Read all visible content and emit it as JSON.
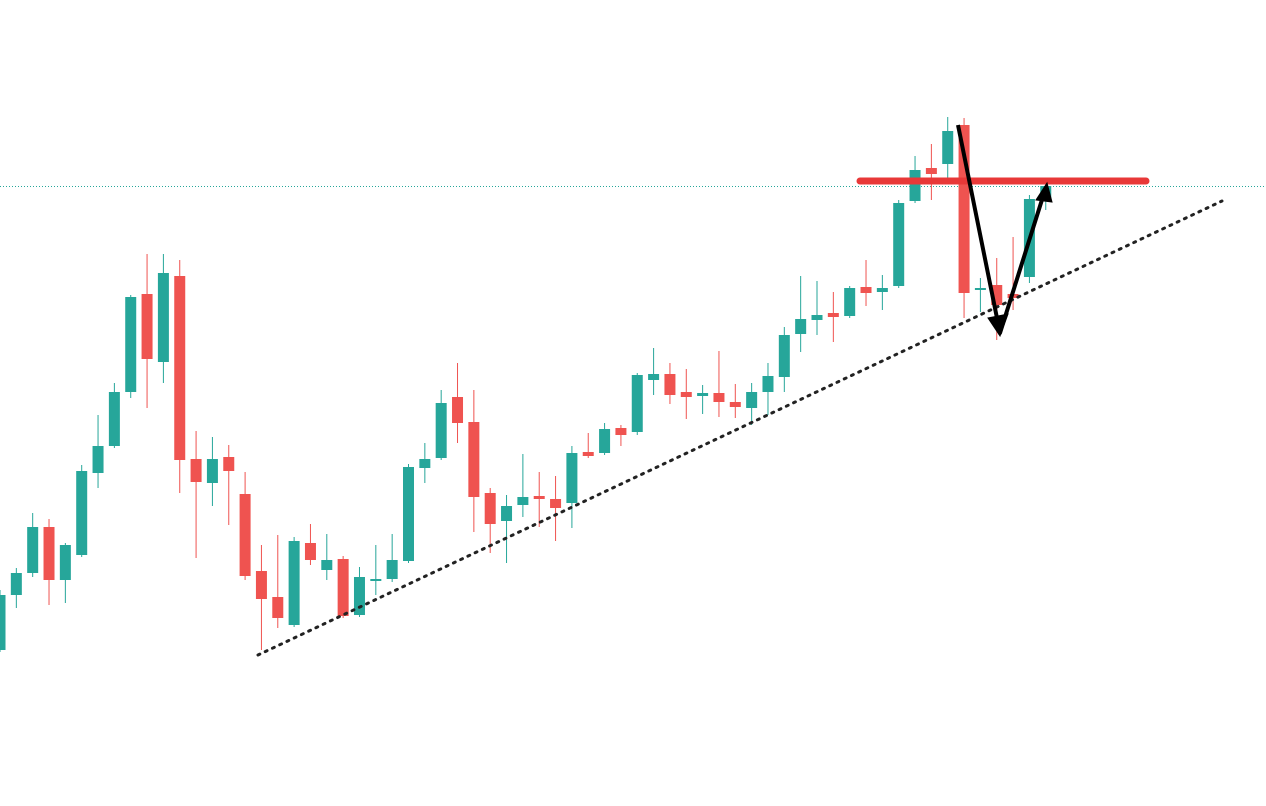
{
  "chart_data": {
    "type": "candlestick",
    "up_color": "#26a69a",
    "down_color": "#ef5350",
    "ylim": [
      0,
      806
    ],
    "series": [
      {
        "open": [
          156,
          211,
          233,
          279,
          226,
          251,
          333,
          360,
          414,
          512,
          444,
          530,
          347,
          323,
          349,
          312,
          235,
          209,
          181,
          263,
          236,
          247,
          191,
          225,
          227,
          245,
          338,
          348,
          409,
          384,
          313,
          285,
          301,
          310,
          307,
          303,
          354,
          353,
          378,
          374,
          426,
          432,
          414,
          410,
          413,
          404,
          398,
          414,
          429,
          472,
          486,
          493,
          490,
          519,
          514,
          520,
          605,
          638,
          642,
          681,
          516,
          521,
          512,
          529,
          607
        ],
        "high": [
          216,
          238,
          293,
          287,
          263,
          341,
          391,
          423,
          511,
          552,
          552,
          546,
          375,
          369,
          361,
          334,
          261,
          271,
          269,
          282,
          272,
          250,
          239,
          261,
          272,
          342,
          363,
          416,
          443,
          416,
          318,
          311,
          352,
          334,
          330,
          360,
          373,
          383,
          381,
          433,
          458,
          443,
          437,
          421,
          455,
          422,
          423,
          443,
          479,
          530,
          525,
          514,
          520,
          546,
          531,
          606,
          650,
          662,
          689,
          688,
          528,
          548,
          569,
          611,
          622
        ],
        "low": [
          154,
          198,
          229,
          201,
          203,
          249,
          318,
          358,
          408,
          398,
          423,
          313,
          248,
          300,
          281,
          226,
          156,
          178,
          179,
          241,
          226,
          188,
          189,
          211,
          224,
          243,
          323,
          346,
          363,
          274,
          253,
          243,
          289,
          279,
          265,
          278,
          348,
          351,
          360,
          371,
          411,
          402,
          387,
          392,
          389,
          388,
          381,
          391,
          414,
          454,
          471,
          464,
          488,
          500,
          496,
          518,
          603,
          606,
          626,
          488,
          494,
          466,
          496,
          523,
          596
        ],
        "close": [
          211,
          233,
          279,
          226,
          261,
          335,
          360,
          414,
          509,
          447,
          533,
          346,
          324,
          347,
          335,
          230,
          207,
          188,
          265,
          246,
          246,
          190,
          229,
          227,
          246,
          339,
          347,
          403,
          383,
          309,
          282,
          300,
          309,
          307,
          298,
          353,
          350,
          377,
          371,
          431,
          432,
          411,
          409,
          413,
          404,
          399,
          414,
          430,
          471,
          487,
          491,
          489,
          518,
          513,
          518,
          603,
          636,
          632,
          675,
          513,
          518,
          501,
          508,
          607,
          620
        ]
      }
    ]
  }
}
